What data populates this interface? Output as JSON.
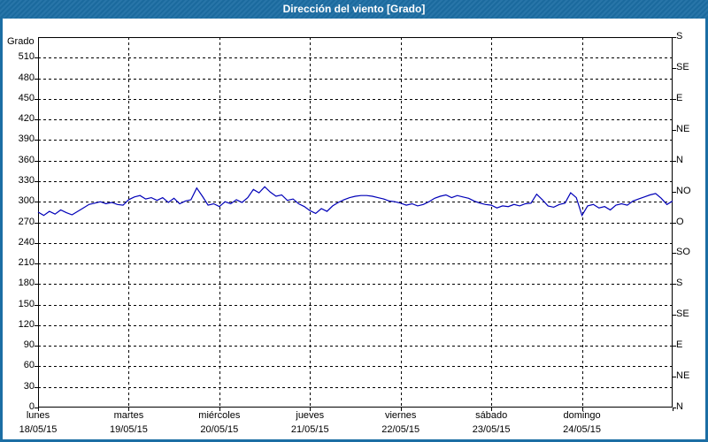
{
  "titlebar": {
    "title": "Dirección del viento [Grado]"
  },
  "colors": {
    "titlebar_background": "#1c6ea4",
    "window_border": "#1c6ea4",
    "series_line": "#0000b8",
    "grid": "#000000",
    "plot_background": "#ffffff",
    "text": "#000000"
  },
  "chart_data": {
    "type": "line",
    "title": "Dirección del viento [Grado]",
    "ylabel": "Grado",
    "ylim": [
      0,
      540
    ],
    "grid": true,
    "grid_style": "dashed",
    "y_ticks_left": [
      0,
      30,
      60,
      90,
      120,
      150,
      180,
      210,
      240,
      270,
      300,
      330,
      360,
      390,
      420,
      450,
      480,
      510
    ],
    "y_ticks_right": [
      {
        "value": 540,
        "label": "S"
      },
      {
        "value": 495,
        "label": "SE"
      },
      {
        "value": 450,
        "label": "E"
      },
      {
        "value": 405,
        "label": "NE"
      },
      {
        "value": 360,
        "label": "N"
      },
      {
        "value": 315,
        "label": "NO"
      },
      {
        "value": 270,
        "label": "O"
      },
      {
        "value": 225,
        "label": "SO"
      },
      {
        "value": 180,
        "label": "S"
      },
      {
        "value": 135,
        "label": "SE"
      },
      {
        "value": 90,
        "label": "E"
      },
      {
        "value": 45,
        "label": "NE"
      },
      {
        "value": 0,
        "label": "N"
      }
    ],
    "x_ticks": [
      {
        "day": "lunes",
        "date": "18/05/15"
      },
      {
        "day": "martes",
        "date": "19/05/15"
      },
      {
        "day": "miércoles",
        "date": "20/05/15"
      },
      {
        "day": "jueves",
        "date": "21/05/15"
      },
      {
        "day": "viernes",
        "date": "22/05/15"
      },
      {
        "day": "sábado",
        "date": "23/05/15"
      },
      {
        "day": "domingo",
        "date": "24/05/15"
      }
    ],
    "x_range_days": 7,
    "series": [
      {
        "name": "Dirección del viento",
        "unit": "Grado",
        "color": "#0000b8",
        "values": [
          285,
          280,
          286,
          282,
          288,
          284,
          281,
          286,
          291,
          296,
          298,
          300,
          297,
          299,
          296,
          295,
          303,
          307,
          309,
          304,
          306,
          302,
          306,
          299,
          305,
          297,
          301,
          303,
          320,
          308,
          295,
          297,
          293,
          300,
          297,
          303,
          299,
          306,
          318,
          313,
          322,
          314,
          308,
          310,
          302,
          304,
          297,
          293,
          287,
          283,
          290,
          286,
          294,
          299,
          303,
          306,
          308,
          309,
          309,
          308,
          306,
          304,
          301,
          300,
          298,
          295,
          297,
          294,
          296,
          300,
          305,
          308,
          310,
          306,
          309,
          307,
          305,
          301,
          298,
          296,
          295,
          291,
          294,
          293,
          296,
          294,
          297,
          298,
          311,
          303,
          294,
          292,
          296,
          298,
          313,
          306,
          280,
          294,
          296,
          291,
          293,
          288,
          295,
          297,
          295,
          301,
          304,
          307,
          310,
          312,
          305,
          296,
          301
        ]
      }
    ]
  }
}
